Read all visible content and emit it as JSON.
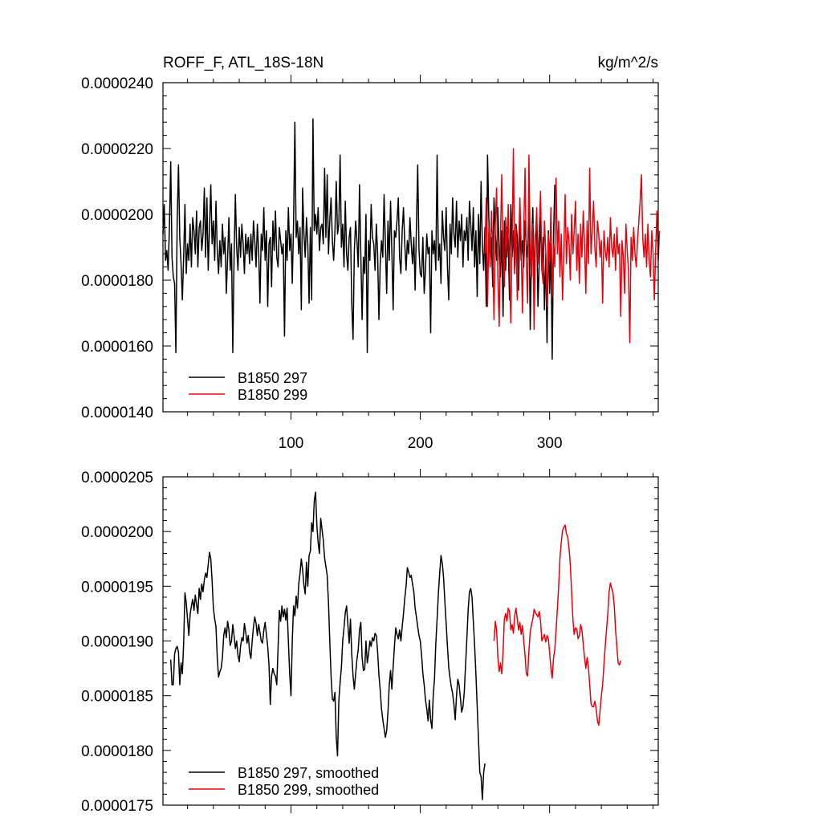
{
  "chart_data": [
    {
      "type": "line",
      "title": "ROFF_F, ATL_18S-18N",
      "units": "kg/m^2/s",
      "xlim": [
        1,
        384
      ],
      "ylim": [
        1.4e-05,
        2.4e-05
      ],
      "x_ticks": [
        100,
        200,
        300
      ],
      "x_tick_labels": [
        "100",
        "200",
        "300"
      ],
      "y_ticks": [
        1.4e-05,
        1.6e-05,
        1.8e-05,
        2e-05,
        2.2e-05,
        2.4e-05
      ],
      "y_tick_labels": [
        "0.0000140",
        "0.0000160",
        "0.0000180",
        "0.0000200",
        "0.0000220",
        "0.0000240"
      ],
      "legend_position": "bottom-left",
      "series": [
        {
          "name": "B1850 297",
          "color": "#000000",
          "x_start": 1,
          "values": [
            1.94e-05,
            2.03e-05,
            1.86e-05,
            1.89e-05,
            1.83e-05,
            1.96e-05,
            2.16e-05,
            1.87e-05,
            1.81e-05,
            1.79e-05,
            1.58e-05,
            1.98e-05,
            2.15e-05,
            1.93e-05,
            1.85e-05,
            1.74e-05,
            1.87e-05,
            2.03e-05,
            1.82e-05,
            1.91e-05,
            1.86e-05,
            1.97e-05,
            1.84e-05,
            1.99e-05,
            1.95e-05,
            1.88e-05,
            2.01e-05,
            1.84e-05,
            1.96e-05,
            1.98e-05,
            1.89e-05,
            1.94e-05,
            2.08e-05,
            1.87e-05,
            2.05e-05,
            1.83e-05,
            1.96e-05,
            2.09e-05,
            1.91e-05,
            1.98e-05,
            1.86e-05,
            2.04e-05,
            1.89e-05,
            1.82e-05,
            1.92e-05,
            1.84e-05,
            1.97e-05,
            1.88e-05,
            1.93e-05,
            1.76e-05,
            1.87e-05,
            1.99e-05,
            1.83e-05,
            1.91e-05,
            1.58e-05,
            1.87e-05,
            2.06e-05,
            1.9e-05,
            1.83e-05,
            1.96e-05,
            1.87e-05,
            1.97e-05,
            1.91e-05,
            1.82e-05,
            1.94e-05,
            1.88e-05,
            1.93e-05,
            1.85e-05,
            1.94e-05,
            1.86e-05,
            1.98e-05,
            1.92e-05,
            1.84e-05,
            1.97e-05,
            1.89e-05,
            1.73e-05,
            1.94e-05,
            1.89e-05,
            2.02e-05,
            1.86e-05,
            1.95e-05,
            1.72e-05,
            1.91e-05,
            1.93e-05,
            1.78e-05,
            1.98e-05,
            1.89e-05,
            2.01e-05,
            1.87e-05,
            1.84e-05,
            1.96e-05,
            1.92e-05,
            1.88e-05,
            1.91e-05,
            1.63e-05,
            1.95e-05,
            1.86e-05,
            2.02e-05,
            1.89e-05,
            1.94e-05,
            1.79e-05,
            1.97e-05,
            2.28e-05,
            1.93e-05,
            1.98e-05,
            1.88e-05,
            1.96e-05,
            1.71e-05,
            2.08e-05,
            1.94e-05,
            1.87e-05,
            1.99e-05,
            1.91e-05,
            1.73e-05,
            1.96e-05,
            1.74e-05,
            2.29e-05,
            1.95e-05,
            2e-05,
            1.94e-05,
            2.02e-05,
            1.89e-05,
            1.96e-05,
            1.97e-05,
            1.91e-05,
            2.14e-05,
            1.93e-05,
            2.12e-05,
            1.88e-05,
            1.98e-05,
            2.05e-05,
            1.92e-05,
            1.86e-05,
            1.95e-05,
            2.1e-05,
            1.94e-05,
            1.97e-05,
            2.18e-05,
            1.9e-05,
            1.97e-05,
            1.84e-05,
            2.04e-05,
            1.88e-05,
            1.83e-05,
            1.93e-05,
            1.96e-05,
            1.73e-05,
            1.62e-05,
            1.89e-05,
            1.98e-05,
            1.92e-05,
            1.84e-05,
            2.09e-05,
            1.88e-05,
            1.68e-05,
            1.87e-05,
            1.82e-05,
            2e-05,
            1.58e-05,
            1.92e-05,
            1.86e-05,
            2.03e-05,
            1.93e-05,
            1.91e-05,
            1.83e-05,
            1.97e-05,
            1.88e-05,
            1.68e-05,
            1.85e-05,
            1.92e-05,
            1.87e-05,
            2.06e-05,
            1.91e-05,
            1.76e-05,
            1.98e-05,
            1.86e-05,
            2.04e-05,
            1.89e-05,
            1.71e-05,
            1.95e-05,
            1.93e-05,
            1.98e-05,
            2.05e-05,
            1.87e-05,
            1.82e-05,
            1.95e-05,
            2.02e-05,
            1.91e-05,
            1.83e-05,
            1.92e-05,
            1.88e-05,
            1.99e-05,
            1.91e-05,
            1.85e-05,
            1.93e-05,
            1.77e-05,
            1.96e-05,
            2.15e-05,
            1.89e-05,
            1.82e-05,
            1.81e-05,
            1.93e-05,
            1.76e-05,
            1.83e-05,
            1.94e-05,
            1.88e-05,
            1.9e-05,
            1.64e-05,
            1.95e-05,
            1.88e-05,
            1.92e-05,
            1.83e-05,
            2.18e-05,
            1.86e-05,
            1.91e-05,
            1.79e-05,
            2.01e-05,
            1.93e-05,
            1.89e-05,
            2.02e-05,
            1.84e-05,
            1.74e-05,
            1.97e-05,
            1.88e-05,
            2.05e-05,
            1.94e-05,
            1.9e-05,
            2.04e-05,
            1.87e-05,
            1.98e-05,
            1.92e-05,
            2e-05,
            1.84e-05,
            1.95e-05,
            1.92e-05,
            1.99e-05,
            1.86e-05,
            2.04e-05,
            1.97e-05,
            1.89e-05,
            2.02e-05,
            1.84e-05,
            1.95e-05,
            1.75e-05,
            2e-05,
            1.85e-05,
            2.1e-05,
            1.9e-05,
            1.83e-05,
            1.96e-05,
            1.72e-05,
            2.18e-05,
            1.99e-05,
            1.85e-05,
            1.93e-05,
            1.78e-05,
            2.05e-05,
            1.94e-05,
            1.86e-05,
            2.02e-05,
            1.88e-05,
            1.81e-05,
            1.95e-05,
            1.69e-05,
            1.98e-05,
            1.83e-05,
            1.96e-05,
            1.91e-05,
            1.74e-05,
            2.03e-05,
            1.87e-05,
            1.95e-05,
            1.82e-05,
            1.97e-05,
            1.93e-05,
            1.77e-05,
            1.99e-05,
            1.86e-05,
            1.92e-05,
            1.84e-05,
            1.98e-05,
            1.91e-05,
            1.87e-05,
            2.05e-05,
            1.65e-05,
            1.88e-05,
            2.02e-05,
            1.79e-05,
            1.94e-05,
            1.96e-05,
            1.72e-05,
            1.86e-05,
            1.99e-05,
            1.83e-05,
            1.93e-05,
            1.71e-05,
            1.88e-05,
            1.61e-05,
            1.95e-05,
            1.76e-05,
            1.91e-05,
            1.56e-05,
            1.93e-05,
            2.09e-05
          ]
        },
        {
          "name": "B1850 299",
          "color": "#e8000b",
          "x_start": 250,
          "values": [
            1.88e-05,
            2.05e-05,
            1.72e-05,
            1.96e-05,
            1.84e-05,
            2.01e-05,
            1.9e-05,
            1.68e-05,
            1.97e-05,
            2.08e-05,
            1.81e-05,
            1.66e-05,
            1.93e-05,
            2.12e-05,
            1.86e-05,
            1.78e-05,
            1.99e-05,
            1.87e-05,
            2.03e-05,
            1.84e-05,
            1.67e-05,
            1.92e-05,
            2.2e-05,
            1.82e-05,
            1.96e-05,
            1.74e-05,
            1.88e-05,
            2.05e-05,
            1.91e-05,
            1.7e-05,
            1.95e-05,
            2.14e-05,
            1.86e-05,
            1.73e-05,
            2.18e-05,
            1.89e-05,
            1.81e-05,
            1.97e-05,
            1.65e-05,
            1.92e-05,
            2.02e-05,
            1.85e-05,
            1.96e-05,
            2.07e-05,
            1.83e-05,
            1.79e-05,
            1.98e-05,
            1.89e-05,
            1.72e-05,
            1.94e-05,
            1.86e-05,
            2.02e-05,
            1.75e-05,
            1.91e-05,
            1.84e-05,
            2.11e-05,
            1.88e-05,
            1.98e-05,
            1.81e-05,
            1.94e-05,
            1.74e-05,
            1.89e-05,
            2.06e-05,
            1.85e-05,
            1.96e-05,
            1.92e-05,
            1.8e-05,
            2e-05,
            1.88e-05,
            1.95e-05,
            2.04e-05,
            1.83e-05,
            1.94e-05,
            1.79e-05,
            1.97e-05,
            1.87e-05,
            2.01e-05,
            1.91e-05,
            1.76e-05,
            1.98e-05,
            1.85e-05,
            2.14e-05,
            1.88e-05,
            1.95e-05,
            2.04e-05,
            1.9e-05,
            1.84e-05,
            1.98e-05,
            1.94e-05,
            1.87e-05,
            1.92e-05,
            1.73e-05,
            1.95e-05,
            1.89e-05,
            1.86e-05,
            1.93e-05,
            1.84e-05,
            1.99e-05,
            1.9e-05,
            1.87e-05,
            1.94e-05,
            1.83e-05,
            1.96e-05,
            1.88e-05,
            1.91e-05,
            1.69e-05,
            1.92e-05,
            1.87e-05,
            1.76e-05,
            1.97e-05,
            1.89e-05,
            1.83e-05,
            1.61e-05,
            1.93e-05,
            1.86e-05,
            1.96e-05,
            1.88e-05,
            1.84e-05,
            1.92e-05,
            1.98e-05,
            2.04e-05,
            2.12e-05,
            1.93e-05,
            1.87e-05,
            1.94e-05,
            1.84e-05,
            1.97e-05,
            1.86e-05,
            1.81e-05,
            1.95e-05,
            1.88e-05,
            1.74e-05,
            1.89e-05,
            2.01e-05,
            1.86e-05,
            1.95e-05
          ]
        }
      ]
    },
    {
      "type": "line",
      "title": "",
      "xlim": [
        1,
        384
      ],
      "ylim": [
        1.75e-05,
        2.05e-05
      ],
      "x_ticks": [
        100,
        200,
        300
      ],
      "y_ticks": [
        1.75e-05,
        1.8e-05,
        1.85e-05,
        1.9e-05,
        1.95e-05,
        2e-05,
        2.05e-05
      ],
      "y_tick_labels": [
        "0.0000175",
        "0.0000180",
        "0.0000185",
        "0.0000190",
        "0.0000195",
        "0.0000200",
        "0.0000205"
      ],
      "legend_position": "bottom-left",
      "series": [
        {
          "name": "B1850 297, smoothed",
          "color": "#000000",
          "x_start": 7,
          "values": [
            1.883e-05,
            1.86e-05,
            1.86e-05,
            1.888e-05,
            1.893e-05,
            1.895e-05,
            1.89e-05,
            1.86e-05,
            1.88e-05,
            1.87e-05,
            1.898e-05,
            1.944e-05,
            1.935e-05,
            1.92e-05,
            1.905e-05,
            1.924e-05,
            1.932e-05,
            1.938e-05,
            1.928e-05,
            1.942e-05,
            1.933e-05,
            1.925e-05,
            1.948e-05,
            1.938e-05,
            1.952e-05,
            1.945e-05,
            1.956e-05,
            1.962e-05,
            1.958e-05,
            1.97e-05,
            1.981e-05,
            1.975e-05,
            1.955e-05,
            1.93e-05,
            1.92e-05,
            1.913e-05,
            1.885e-05,
            1.867e-05,
            1.872e-05,
            1.875e-05,
            1.885e-05,
            1.905e-05,
            1.912e-05,
            1.903e-05,
            1.918e-05,
            1.91e-05,
            1.896e-05,
            1.9e-05,
            1.915e-05,
            1.905e-05,
            1.893e-05,
            1.9e-05,
            1.887e-05,
            1.881e-05,
            1.895e-05,
            1.903e-05,
            1.9e-05,
            1.916e-05,
            1.908e-05,
            1.898e-05,
            1.905e-05,
            1.89e-05,
            1.884e-05,
            1.9e-05,
            1.913e-05,
            1.922e-05,
            1.916e-05,
            1.905e-05,
            1.915e-05,
            1.908e-05,
            1.9e-05,
            1.898e-05,
            1.91e-05,
            1.917e-05,
            1.906e-05,
            1.895e-05,
            1.878e-05,
            1.842e-05,
            1.868e-05,
            1.875e-05,
            1.87e-05,
            1.868e-05,
            1.86e-05,
            1.893e-05,
            1.928e-05,
            1.918e-05,
            1.932e-05,
            1.922e-05,
            1.929e-05,
            1.919e-05,
            1.93e-05,
            1.899e-05,
            1.87e-05,
            1.85e-05,
            1.9e-05,
            1.932e-05,
            1.923e-05,
            1.941e-05,
            1.93e-05,
            1.952e-05,
            1.962e-05,
            1.975e-05,
            1.965e-05,
            1.951e-05,
            1.943e-05,
            1.972e-05,
            1.95e-05,
            1.978e-05,
            1.982e-05,
            2.008e-05,
            2e-05,
            2.028e-05,
            2.036e-05,
            2.006e-05,
            1.99e-05,
            1.98e-05,
            2.012e-05,
            2.002e-05,
            1.992e-05,
            1.976e-05,
            1.968e-05,
            1.96e-05,
            1.935e-05,
            1.9e-05,
            1.868e-05,
            1.847e-05,
            1.845e-05,
            1.853e-05,
            1.812e-05,
            1.795e-05,
            1.845e-05,
            1.862e-05,
            1.876e-05,
            1.9e-05,
            1.912e-05,
            1.926e-05,
            1.932e-05,
            1.915e-05,
            1.898e-05,
            1.92e-05,
            1.888e-05,
            1.868e-05,
            1.856e-05,
            1.87e-05,
            1.883e-05,
            1.892e-05,
            1.91e-05,
            1.917e-05,
            1.885e-05,
            1.873e-05,
            1.874e-05,
            1.9e-05,
            1.88e-05,
            1.888e-05,
            1.9e-05,
            1.895e-05,
            1.903e-05,
            1.9e-05,
            1.907e-05,
            1.905e-05,
            1.89e-05,
            1.869e-05,
            1.855e-05,
            1.838e-05,
            1.828e-05,
            1.82e-05,
            1.812e-05,
            1.818e-05,
            1.835e-05,
            1.86e-05,
            1.873e-05,
            1.856e-05,
            1.876e-05,
            1.895e-05,
            1.912e-05,
            1.906e-05,
            1.902e-05,
            1.91e-05,
            1.9e-05,
            1.913e-05,
            1.925e-05,
            1.939e-05,
            1.95e-05,
            1.967e-05,
            1.963e-05,
            1.958e-05,
            1.96e-05,
            1.952e-05,
            1.945e-05,
            1.93e-05,
            1.922e-05,
            1.913e-05,
            1.905e-05,
            1.9e-05,
            1.887e-05,
            1.87e-05,
            1.86e-05,
            1.846e-05,
            1.838e-05,
            1.827e-05,
            1.846e-05,
            1.828e-05,
            1.82e-05,
            1.85e-05,
            1.866e-05,
            1.898e-05,
            1.92e-05,
            1.944e-05,
            1.962e-05,
            1.978e-05,
            1.971e-05,
            1.958e-05,
            1.936e-05,
            1.916e-05,
            1.895e-05,
            1.876e-05,
            1.866e-05,
            1.858e-05,
            1.852e-05,
            1.842e-05,
            1.828e-05,
            1.85e-05,
            1.865e-05,
            1.86e-05,
            1.848e-05,
            1.835e-05,
            1.84e-05,
            1.853e-05,
            1.878e-05,
            1.902e-05,
            1.928e-05,
            1.945e-05,
            1.948e-05,
            1.94e-05,
            1.918e-05,
            1.896e-05,
            1.87e-05,
            1.84e-05,
            1.81e-05,
            1.78e-05,
            1.776e-05,
            1.755e-05,
            1.78e-05,
            1.788e-05
          ]
        },
        {
          "name": "B1850 299, smoothed",
          "color": "#e8000b",
          "x_start": 257,
          "values": [
            1.9e-05,
            1.918e-05,
            1.91e-05,
            1.885e-05,
            1.872e-05,
            1.88e-05,
            1.87e-05,
            1.89e-05,
            1.92e-05,
            1.925e-05,
            1.918e-05,
            1.93e-05,
            1.927e-05,
            1.91e-05,
            1.915e-05,
            1.907e-05,
            1.923e-05,
            1.93e-05,
            1.92e-05,
            1.91e-05,
            1.917e-05,
            1.906e-05,
            1.914e-05,
            1.9e-05,
            1.887e-05,
            1.87e-05,
            1.868e-05,
            1.891e-05,
            1.908e-05,
            1.915e-05,
            1.92e-05,
            1.929e-05,
            1.926e-05,
            1.924e-05,
            1.922e-05,
            1.927e-05,
            1.918e-05,
            1.9e-05,
            1.903e-05,
            1.906e-05,
            1.899e-05,
            1.905e-05,
            1.902e-05,
            1.89e-05,
            1.875e-05,
            1.866e-05,
            1.884e-05,
            1.892e-05,
            1.91e-05,
            1.929e-05,
            1.95e-05,
            1.976e-05,
            1.99e-05,
            2.001e-05,
            2.004e-05,
            2.006e-05,
            1.998e-05,
            1.995e-05,
            1.985e-05,
            1.97e-05,
            1.945e-05,
            1.92e-05,
            1.906e-05,
            1.912e-05,
            1.911e-05,
            1.902e-05,
            1.905e-05,
            1.915e-05,
            1.91e-05,
            1.897e-05,
            1.885e-05,
            1.875e-05,
            1.885e-05,
            1.876e-05,
            1.86e-05,
            1.843e-05,
            1.84e-05,
            1.84e-05,
            1.845e-05,
            1.838e-05,
            1.827e-05,
            1.823e-05,
            1.836e-05,
            1.85e-05,
            1.86e-05,
            1.878e-05,
            1.895e-05,
            1.91e-05,
            1.925e-05,
            1.945e-05,
            1.953e-05,
            1.948e-05,
            1.944e-05,
            1.932e-05,
            1.91e-05,
            1.895e-05,
            1.88e-05,
            1.878e-05,
            1.882e-05
          ]
        }
      ]
    }
  ]
}
